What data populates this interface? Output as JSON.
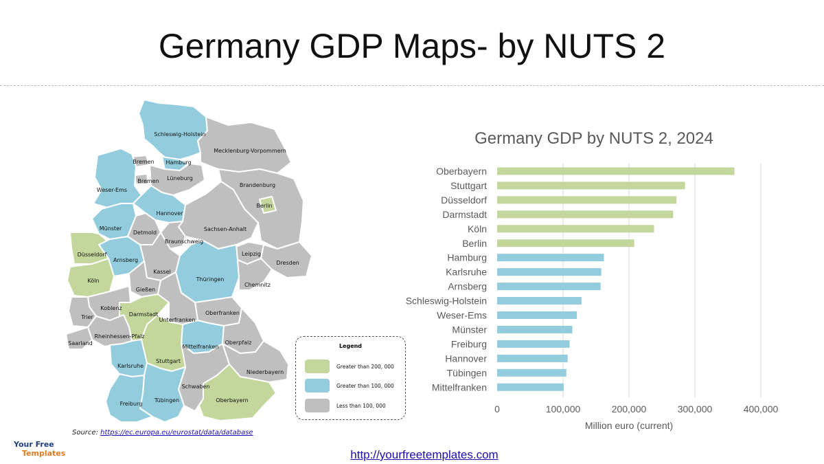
{
  "page": {
    "title": "Germany GDP Maps- by NUTS 2",
    "footer_link": "http://yourfreetemplates.com",
    "source_label": "Source:",
    "source_link": "https://ec.europa.eu/eurostat/data/database",
    "logo": {
      "line1": "Your Free",
      "line2": "Templates"
    }
  },
  "colors": {
    "green": "#c3d69b",
    "blue": "#93cddd",
    "gray": "#bfbfbf",
    "bar_green": "#c3d69b",
    "bar_blue": "#93cddd"
  },
  "legend": {
    "title": "Legend",
    "items": [
      {
        "label": "Greater than 200, 000",
        "color": "#c3d69b"
      },
      {
        "label": "Greater than 100, 000",
        "color": "#93cddd"
      },
      {
        "label": "Less than 100, 000",
        "color": "#bfbfbf"
      }
    ]
  },
  "map_regions": [
    {
      "name": "Schleswig-Holstein",
      "group": "blue"
    },
    {
      "name": "Mecklenburg-Vorpommern",
      "group": "gray"
    },
    {
      "name": "Bremen",
      "group": "gray"
    },
    {
      "name": "Hamburg",
      "group": "blue"
    },
    {
      "name": "Bremen",
      "group": "gray"
    },
    {
      "name": "Lüneburg",
      "group": "gray"
    },
    {
      "name": "Weser-Ems",
      "group": "blue"
    },
    {
      "name": "Brandenburg",
      "group": "gray"
    },
    {
      "name": "Berlin",
      "group": "green"
    },
    {
      "name": "Hannover",
      "group": "blue"
    },
    {
      "name": "Münster",
      "group": "blue"
    },
    {
      "name": "Detmold",
      "group": "gray"
    },
    {
      "name": "Sachsen-Anhalt",
      "group": "gray"
    },
    {
      "name": "Braunschweig",
      "group": "gray"
    },
    {
      "name": "Düsseldorf",
      "group": "green"
    },
    {
      "name": "Arnsberg",
      "group": "blue"
    },
    {
      "name": "Leipzig",
      "group": "gray"
    },
    {
      "name": "Dresden",
      "group": "gray"
    },
    {
      "name": "Kassel",
      "group": "gray"
    },
    {
      "name": "Köln",
      "group": "green"
    },
    {
      "name": "Thüringen",
      "group": "blue"
    },
    {
      "name": "Chemnitz",
      "group": "gray"
    },
    {
      "name": "Gießen",
      "group": "gray"
    },
    {
      "name": "Koblenz",
      "group": "gray"
    },
    {
      "name": "Trier",
      "group": "gray"
    },
    {
      "name": "Darmstadt",
      "group": "green"
    },
    {
      "name": "Oberfranken",
      "group": "gray"
    },
    {
      "name": "Unterfranken",
      "group": "gray"
    },
    {
      "name": "Rheinhessen-Pfalz",
      "group": "gray"
    },
    {
      "name": "Saarland",
      "group": "gray"
    },
    {
      "name": "Mittelfranken",
      "group": "blue"
    },
    {
      "name": "Oberpfalz",
      "group": "gray"
    },
    {
      "name": "Stuttgart",
      "group": "green"
    },
    {
      "name": "Karlsruhe",
      "group": "blue"
    },
    {
      "name": "Niederbayern",
      "group": "gray"
    },
    {
      "name": "Schwaben",
      "group": "gray"
    },
    {
      "name": "Tübingen",
      "group": "blue"
    },
    {
      "name": "Freiburg",
      "group": "blue"
    },
    {
      "name": "Oberbayern",
      "group": "green"
    }
  ],
  "chart_data": {
    "type": "bar",
    "orientation": "horizontal",
    "title": "Germany GDP by NUTS 2, 2024",
    "xlabel": "Million euro (current)",
    "ylabel": "",
    "xlim": [
      0,
      400000
    ],
    "xticks": [
      0,
      100000,
      200000,
      300000,
      400000
    ],
    "xtick_labels": [
      "0",
      "100,000",
      "200,000",
      "300,000",
      "400,000"
    ],
    "grid": "vertical",
    "categories": [
      "Oberbayern",
      "Stuttgart",
      "Düsseldorf",
      "Darmstadt",
      "Köln",
      "Berlin",
      "Hamburg",
      "Karlsruhe",
      "Arnsberg",
      "Schleswig-Holstein",
      "Weser-Ems",
      "Münster",
      "Freiburg",
      "Hannover",
      "Tübingen",
      "Mittelfranken"
    ],
    "values": [
      360000,
      285000,
      272000,
      267000,
      238000,
      208000,
      162000,
      158000,
      157000,
      128000,
      121000,
      114000,
      110000,
      107000,
      105000,
      101000
    ],
    "bar_colors": [
      "green",
      "green",
      "green",
      "green",
      "green",
      "green",
      "blue",
      "blue",
      "blue",
      "blue",
      "blue",
      "blue",
      "blue",
      "blue",
      "blue",
      "blue"
    ]
  }
}
